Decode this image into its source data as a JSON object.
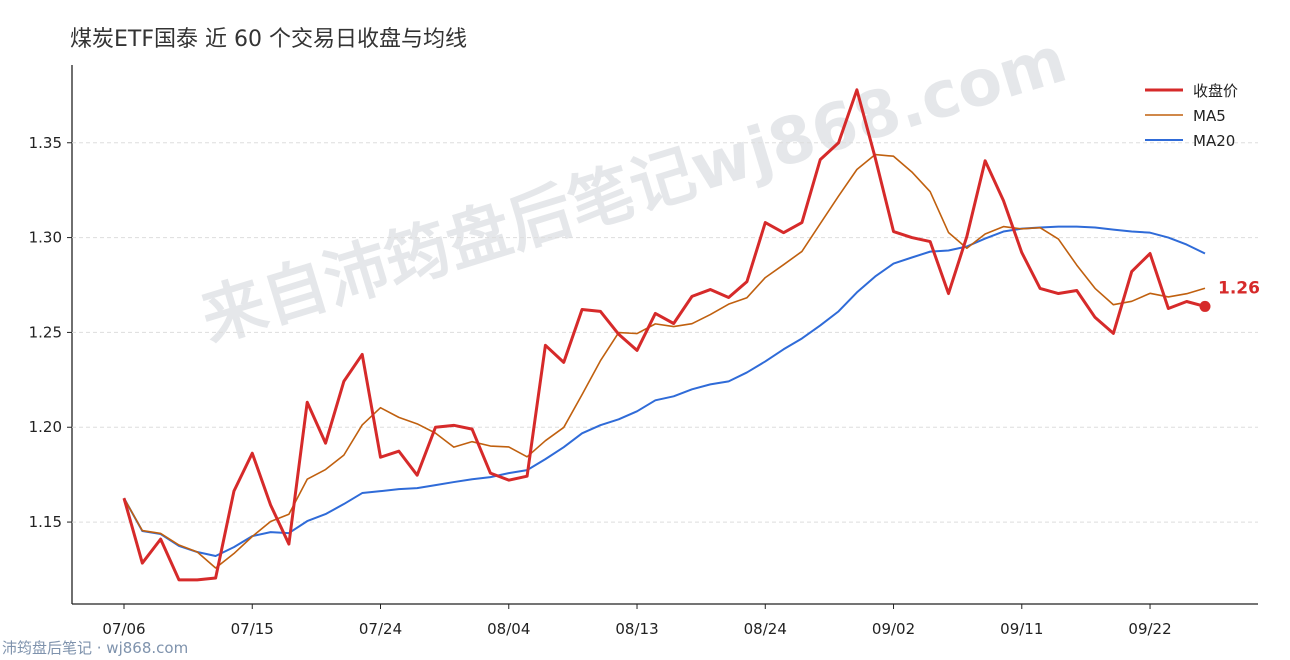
{
  "chart_data": {
    "type": "line",
    "title": "煤炭ETF国泰 近 60 个交易日收盘与均线",
    "watermark": "来自沛筠盘后笔记wj868.com",
    "footer": "沛筠盘后笔记 · wj868.com",
    "categories": [
      "07/06",
      null,
      null,
      null,
      null,
      null,
      null,
      "07/15",
      null,
      null,
      null,
      null,
      null,
      null,
      "07/24",
      null,
      null,
      null,
      null,
      null,
      null,
      "08/04",
      null,
      null,
      null,
      null,
      null,
      null,
      "08/13",
      null,
      null,
      null,
      null,
      null,
      null,
      "08/24",
      null,
      null,
      null,
      null,
      null,
      null,
      "09/02",
      null,
      null,
      null,
      null,
      null,
      null,
      "09/11",
      null,
      null,
      null,
      null,
      null,
      null,
      "09/22",
      null,
      null,
      null
    ],
    "series": [
      {
        "name": "收盘价",
        "color": "#d62a2a",
        "width": 3,
        "values": [
          1.1626,
          1.1284,
          1.141,
          1.1195,
          1.1195,
          1.1205,
          1.1663,
          1.1863,
          1.159,
          1.1384,
          1.2132,
          1.1916,
          1.2242,
          1.2384,
          1.1842,
          1.1874,
          1.1747,
          1.2,
          1.201,
          1.199,
          1.1758,
          1.1721,
          1.1742,
          1.2432,
          1.2342,
          1.2621,
          1.2611,
          1.249,
          1.2405,
          1.26,
          1.2547,
          1.269,
          1.2726,
          1.2684,
          1.2768,
          1.3079,
          1.3026,
          1.3079,
          1.3411,
          1.35,
          1.3779,
          1.3421,
          1.3032,
          1.3,
          1.2979,
          1.2705,
          1.3005,
          1.3405,
          1.3195,
          1.2921,
          1.2732,
          1.2705,
          1.2721,
          1.2579,
          1.2495,
          1.2821,
          1.2916,
          1.2626,
          1.2663,
          1.2637
        ],
        "value_labels": [
          null,
          null,
          null,
          null,
          null,
          null,
          null,
          null,
          null,
          null,
          null,
          null,
          null,
          null,
          null,
          null,
          null,
          null,
          null,
          null,
          null,
          null,
          null,
          null,
          null,
          null,
          null,
          null,
          null,
          null,
          null,
          null,
          null,
          null,
          null,
          null,
          null,
          null,
          null,
          null,
          null,
          null,
          null,
          null,
          null,
          null,
          null,
          null,
          null,
          null,
          null,
          null,
          null,
          null,
          null,
          null,
          null,
          null,
          null,
          "1.26"
        ]
      },
      {
        "name": "MA5",
        "color": "#c0600f",
        "width": 1.6,
        "values": [
          1.1626,
          1.1455,
          1.144,
          1.1379,
          1.1342,
          1.1258,
          1.1334,
          1.1424,
          1.1503,
          1.1541,
          1.1726,
          1.1777,
          1.1853,
          1.2012,
          1.2103,
          1.2052,
          1.2018,
          1.1969,
          1.1895,
          1.1924,
          1.1901,
          1.1896,
          1.1844,
          1.1929,
          1.1999,
          1.2172,
          1.235,
          1.2499,
          1.2494,
          1.2545,
          1.2531,
          1.2546,
          1.2594,
          1.2649,
          1.2683,
          1.2789,
          1.2857,
          1.2927,
          1.3073,
          1.3219,
          1.3359,
          1.3438,
          1.3429,
          1.3346,
          1.3242,
          1.3027,
          1.2944,
          1.3019,
          1.3058,
          1.3046,
          1.3052,
          1.2992,
          1.2855,
          1.2732,
          1.2646,
          1.2664,
          1.2706,
          1.2687,
          1.2704,
          1.2733
        ]
      },
      {
        "name": "MA20",
        "color": "#2f6bd8",
        "width": 2,
        "values": [
          1.1626,
          1.1453,
          1.1437,
          1.1374,
          1.1342,
          1.1321,
          1.1368,
          1.1426,
          1.1447,
          1.1442,
          1.1505,
          1.1542,
          1.1595,
          1.1653,
          1.1663,
          1.1674,
          1.1679,
          1.1695,
          1.1711,
          1.1726,
          1.1737,
          1.1758,
          1.1774,
          1.1832,
          1.1895,
          1.1968,
          1.2011,
          1.2042,
          1.2084,
          1.2142,
          1.2163,
          1.22,
          1.2226,
          1.2242,
          1.2289,
          1.2347,
          1.2411,
          1.2468,
          1.2537,
          1.2611,
          1.2711,
          1.2795,
          1.2863,
          1.2895,
          1.2926,
          1.2932,
          1.2953,
          1.2995,
          1.3032,
          1.3047,
          1.3053,
          1.3058,
          1.3058,
          1.3053,
          1.3042,
          1.3032,
          1.3026,
          1.3,
          1.2963,
          1.2916
        ]
      }
    ],
    "ylim": [
      1.1068,
      1.391
    ],
    "yticks": [
      1.15,
      {
        "value": 1.2,
        "label": "1.20"
      },
      1.25,
      {
        "value": 1.3,
        "label": "1.30"
      },
      1.35
    ],
    "grid": true,
    "legend": "upper right"
  }
}
